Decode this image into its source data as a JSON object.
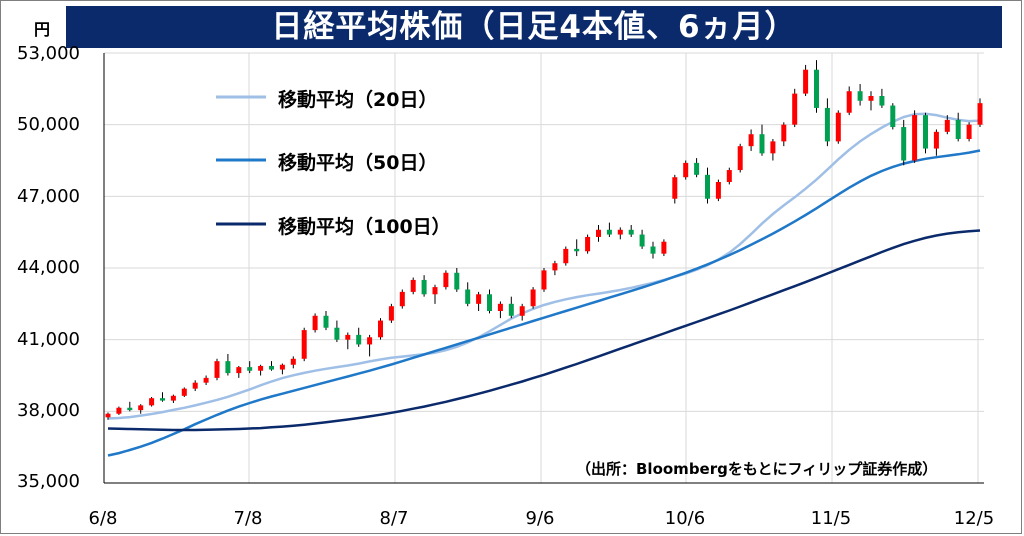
{
  "title": "日経平均株価（日足4本値、6ヵ月）",
  "y_unit": "円",
  "source_note": "（出所：Bloombergをもとにフィリップ証券作成）",
  "colors": {
    "title_bg": "#0b2a6b",
    "up": "#ff0000",
    "down": "#00a050",
    "ma20": "#9fbfe6",
    "ma50": "#1f78c8",
    "ma100": "#0b2a6b",
    "grid": "#d9d9d9"
  },
  "chart_data": {
    "type": "line",
    "title": "日経平均株価（日足4本値、6ヵ月）",
    "ylabel": "円",
    "ylim": [
      35000,
      53000
    ],
    "yticks": [
      "35,000",
      "38,000",
      "41,000",
      "44,000",
      "47,000",
      "50,000",
      "53,000"
    ],
    "ytick_values": [
      35000,
      38000,
      41000,
      44000,
      47000,
      50000,
      53000
    ],
    "xticks": [
      "6/8",
      "7/8",
      "8/7",
      "9/6",
      "10/6",
      "11/5",
      "12/5"
    ],
    "grid": true,
    "legend_placement": "top-left",
    "series": [
      {
        "name": "移動平均（20日）",
        "values": [
          37700,
          37720,
          37760,
          37820,
          37890,
          37970,
          38060,
          38150,
          38250,
          38360,
          38480,
          38610,
          38760,
          38920,
          39090,
          39250,
          39390,
          39510,
          39610,
          39700,
          39780,
          39850,
          39920,
          40000,
          40090,
          40170,
          40240,
          40290,
          40340,
          40390,
          40460,
          40560,
          40700,
          40880,
          41100,
          41350,
          41620,
          41880,
          42100,
          42290,
          42450,
          42580,
          42690,
          42780,
          42860,
          42930,
          43000,
          43080,
          43170,
          43270,
          43380,
          43500,
          43630,
          43770,
          43930,
          44120,
          44350,
          44640,
          45000,
          45420,
          45860,
          46260,
          46620,
          46960,
          47320,
          47700,
          48120,
          48550,
          48950,
          49300,
          49610,
          49880,
          50120,
          50320,
          50440,
          50460,
          50400,
          50290,
          50200,
          50150,
          50170
        ]
      },
      {
        "name": "移動平均（50日）",
        "values": [
          36150,
          36250,
          36380,
          36520,
          36680,
          36860,
          37050,
          37250,
          37460,
          37660,
          37850,
          38030,
          38200,
          38350,
          38490,
          38620,
          38740,
          38860,
          38980,
          39100,
          39220,
          39340,
          39460,
          39580,
          39700,
          39830,
          39960,
          40100,
          40240,
          40380,
          40520,
          40660,
          40800,
          40940,
          41080,
          41220,
          41360,
          41500,
          41640,
          41780,
          41920,
          42060,
          42200,
          42340,
          42480,
          42620,
          42760,
          42900,
          43040,
          43180,
          43330,
          43480,
          43640,
          43800,
          43970,
          44150,
          44340,
          44540,
          44750,
          44970,
          45200,
          45440,
          45690,
          45950,
          46220,
          46500,
          46790,
          47080,
          47360,
          47620,
          47860,
          48060,
          48230,
          48370,
          48480,
          48570,
          48640,
          48700,
          48760,
          48830,
          48920
        ]
      },
      {
        "name": "移動平均（100日）",
        "values": [
          37280,
          37270,
          37260,
          37250,
          37240,
          37230,
          37220,
          37220,
          37220,
          37230,
          37240,
          37250,
          37260,
          37280,
          37300,
          37330,
          37360,
          37400,
          37440,
          37490,
          37540,
          37600,
          37660,
          37720,
          37790,
          37860,
          37940,
          38020,
          38110,
          38200,
          38300,
          38400,
          38510,
          38620,
          38740,
          38860,
          38990,
          39120,
          39250,
          39390,
          39530,
          39680,
          39830,
          39980,
          40140,
          40300,
          40460,
          40620,
          40780,
          40940,
          41100,
          41260,
          41420,
          41580,
          41740,
          41900,
          42060,
          42220,
          42390,
          42560,
          42730,
          42900,
          43070,
          43240,
          43410,
          43590,
          43770,
          43950,
          44130,
          44310,
          44490,
          44670,
          44840,
          45000,
          45140,
          45260,
          45360,
          45440,
          45500,
          45540,
          45570
        ]
      }
    ]
  },
  "candles": [
    [
      37750,
      37950,
      37650,
      37900
    ],
    [
      37900,
      38200,
      37850,
      38150
    ],
    [
      38150,
      38400,
      38000,
      38050
    ],
    [
      38050,
      38300,
      37900,
      38250
    ],
    [
      38250,
      38600,
      38200,
      38550
    ],
    [
      38550,
      38800,
      38400,
      38450
    ],
    [
      38450,
      38700,
      38350,
      38650
    ],
    [
      38650,
      39000,
      38600,
      38950
    ],
    [
      38950,
      39300,
      38850,
      39200
    ],
    [
      39200,
      39500,
      39100,
      39400
    ],
    [
      39400,
      40200,
      39300,
      40100
    ],
    [
      40100,
      40400,
      39500,
      39600
    ],
    [
      39600,
      39900,
      39400,
      39850
    ],
    [
      39850,
      40100,
      39600,
      39700
    ],
    [
      39700,
      39950,
      39500,
      39900
    ],
    [
      39900,
      40100,
      39700,
      39750
    ],
    [
      39750,
      40000,
      39550,
      39950
    ],
    [
      39950,
      40300,
      39800,
      40200
    ],
    [
      40200,
      41500,
      40100,
      41400
    ],
    [
      41400,
      42100,
      41300,
      42000
    ],
    [
      42000,
      42200,
      41400,
      41500
    ],
    [
      41500,
      41800,
      40900,
      41000
    ],
    [
      41000,
      41300,
      40600,
      41200
    ],
    [
      41200,
      41500,
      40700,
      40800
    ],
    [
      40800,
      41200,
      40300,
      41100
    ],
    [
      41100,
      41900,
      41000,
      41800
    ],
    [
      41800,
      42500,
      41700,
      42400
    ],
    [
      42400,
      43100,
      42300,
      43000
    ],
    [
      43000,
      43600,
      42900,
      43500
    ],
    [
      43500,
      43700,
      42800,
      42900
    ],
    [
      42900,
      43300,
      42500,
      43200
    ],
    [
      43200,
      43900,
      43100,
      43800
    ],
    [
      43800,
      44000,
      43000,
      43100
    ],
    [
      43100,
      43400,
      42400,
      42500
    ],
    [
      42500,
      43000,
      42200,
      42900
    ],
    [
      42900,
      43100,
      42100,
      42200
    ],
    [
      42200,
      42600,
      41900,
      42500
    ],
    [
      42500,
      42800,
      41900,
      42000
    ],
    [
      42000,
      42500,
      41800,
      42400
    ],
    [
      42400,
      43200,
      42300,
      43100
    ],
    [
      43100,
      44000,
      43000,
      43900
    ],
    [
      43900,
      44300,
      43700,
      44200
    ],
    [
      44200,
      44900,
      44100,
      44800
    ],
    [
      44800,
      45200,
      44500,
      44700
    ],
    [
      44700,
      45400,
      44600,
      45300
    ],
    [
      45300,
      45800,
      45100,
      45600
    ],
    [
      45600,
      45900,
      45300,
      45400
    ],
    [
      45400,
      45700,
      45200,
      45600
    ],
    [
      45600,
      45800,
      45300,
      45400
    ],
    [
      45400,
      45600,
      44800,
      44900
    ],
    [
      44900,
      45100,
      44400,
      44600
    ],
    [
      44600,
      45200,
      44500,
      45100
    ],
    [
      46900,
      47900,
      46700,
      47800
    ],
    [
      47800,
      48500,
      47700,
      48400
    ],
    [
      48400,
      48600,
      47800,
      47900
    ],
    [
      47900,
      48200,
      46700,
      46900
    ],
    [
      46900,
      47700,
      46800,
      47600
    ],
    [
      47600,
      48200,
      47500,
      48100
    ],
    [
      48100,
      49200,
      48000,
      49100
    ],
    [
      49100,
      49800,
      48900,
      49600
    ],
    [
      49600,
      50000,
      48700,
      48800
    ],
    [
      48800,
      49400,
      48500,
      49300
    ],
    [
      49300,
      50100,
      49100,
      50000
    ],
    [
      50000,
      51500,
      49900,
      51300
    ],
    [
      51300,
      52500,
      51200,
      52300
    ],
    [
      52300,
      52700,
      50500,
      50700
    ],
    [
      50700,
      51100,
      49100,
      49300
    ],
    [
      49300,
      50600,
      49200,
      50500
    ],
    [
      50500,
      51600,
      50400,
      51400
    ],
    [
      51400,
      51700,
      50800,
      51000
    ],
    [
      51000,
      51400,
      50600,
      51200
    ],
    [
      51200,
      51500,
      50700,
      50800
    ],
    [
      50800,
      50900,
      49800,
      49900
    ],
    [
      49900,
      50200,
      48300,
      48500
    ],
    [
      48500,
      50600,
      48400,
      50400
    ],
    [
      50400,
      50500,
      48800,
      49000
    ],
    [
      49000,
      49800,
      48700,
      49700
    ],
    [
      49700,
      50400,
      49600,
      50200
    ],
    [
      50200,
      50500,
      49300,
      49400
    ],
    [
      49400,
      50100,
      49300,
      50000
    ],
    [
      50000,
      51100,
      49900,
      50900
    ]
  ]
}
